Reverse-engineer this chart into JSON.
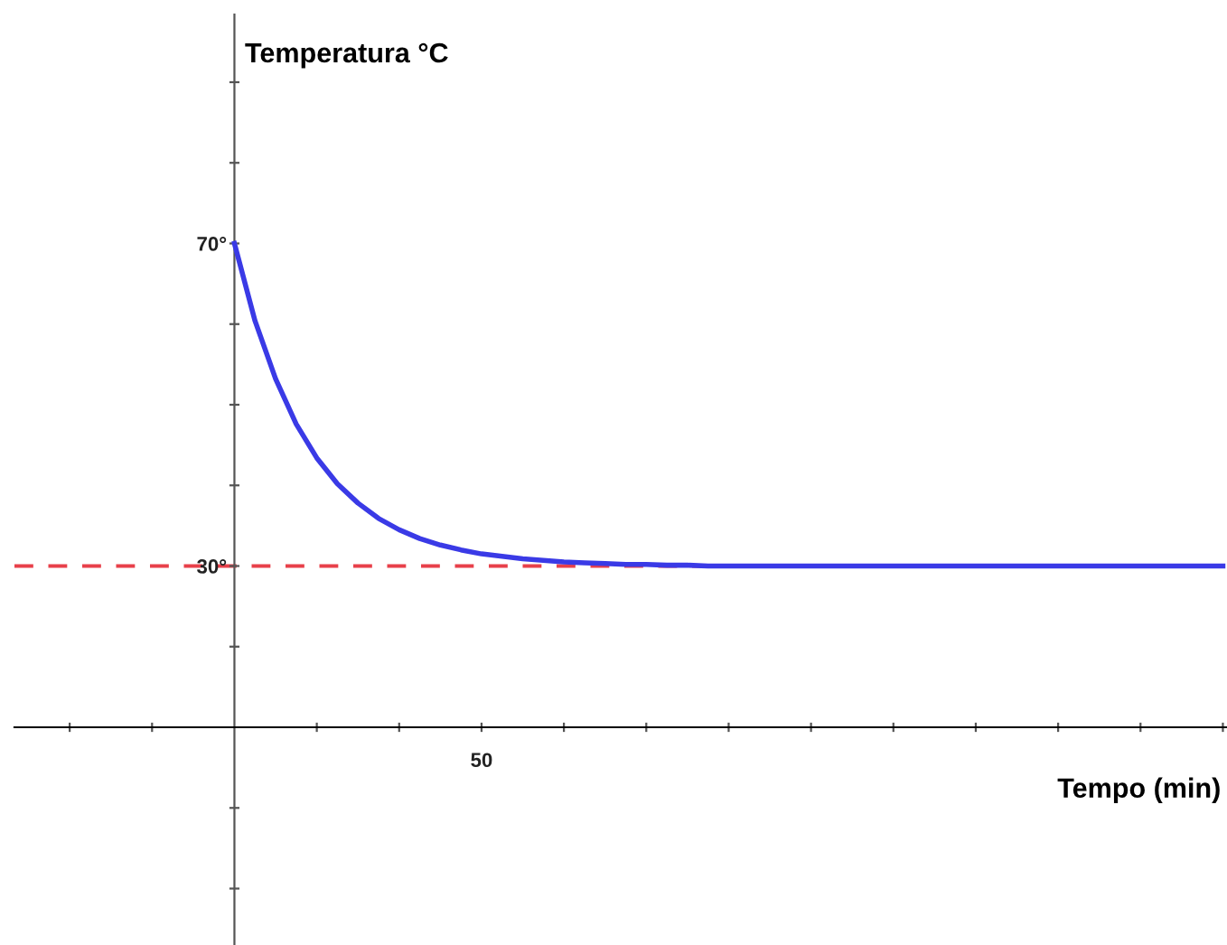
{
  "chart_data": {
    "type": "line",
    "xlabel": "Tempo (min)",
    "ylabel": "Temperatura °C",
    "categories": [
      null,
      null,
      null,
      null,
      null,
      null,
      null,
      null,
      null,
      null,
      null,
      null,
      "50",
      null,
      null,
      null,
      null,
      null,
      null,
      null,
      null,
      null,
      null,
      null,
      null,
      null,
      null,
      null,
      null,
      null,
      null,
      null,
      null,
      null,
      null,
      null,
      null,
      null,
      null,
      null,
      null,
      null,
      null,
      null,
      null,
      null,
      null,
      null,
      null
    ],
    "series": [
      {
        "color": "#3a3ae6",
        "values": [
          70,
          60.4,
          53.2,
          47.6,
          43.4,
          40.2,
          37.8,
          35.9,
          34.5,
          33.4,
          32.6,
          32.0,
          31.5,
          31.2,
          30.9,
          30.7,
          30.5,
          30.4,
          30.3,
          30.2,
          30.2,
          30.1,
          30.1,
          30,
          30,
          30,
          30,
          30,
          30,
          30,
          30,
          30,
          30,
          30,
          30,
          30,
          30,
          30,
          30,
          30,
          30,
          30,
          30,
          30,
          30,
          30,
          30,
          30,
          30
        ]
      }
    ],
    "ylim": [
      -17,
      98.4
    ],
    "yticks": [
      {
        "value": -10,
        "label": null
      },
      {
        "value": 0,
        "label": null
      },
      {
        "value": 20,
        "label": null
      },
      {
        "value": 30,
        "label": "30°"
      },
      {
        "value": 40,
        "label": null
      },
      {
        "value": 50,
        "label": null
      },
      {
        "value": 60,
        "label": null
      },
      {
        "value": 70,
        "label": "70°"
      },
      {
        "value": 80,
        "label": null
      },
      {
        "value": 90,
        "label": null
      }
    ],
    "ref_lines": [
      {
        "axis": "y",
        "value": 10,
        "color": "#000000",
        "line_style": "solid"
      },
      {
        "axis": "y",
        "value": 30,
        "color": "#e8404a",
        "line_style": "dashed"
      }
    ],
    "grid": false,
    "legend": false,
    "marker": "none",
    "line_style": "solid"
  }
}
